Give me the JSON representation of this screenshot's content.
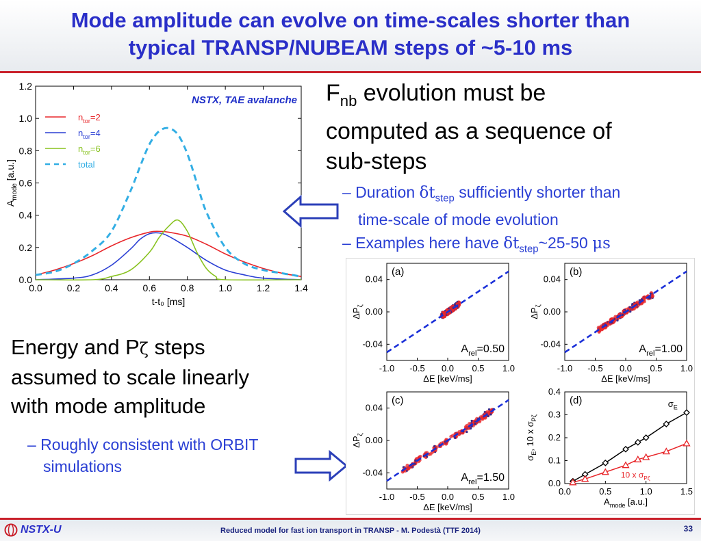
{
  "slide": {
    "title_line1": "Mode amplitude can evolve on time-scales shorter than",
    "title_line2": "typical TRANSP/NUBEAM steps of ~5-10 ms",
    "right": {
      "heading_pre": "F",
      "heading_sub": "nb",
      "heading_line1_rest": " evolution must be",
      "heading_line2": "computed as a sequence of",
      "heading_line3": "sub-steps",
      "bullet1_a": "– Duration ",
      "bullet1_sym": "δt",
      "bullet1_sub": "step",
      "bullet1_b": " sufficiently shorter than",
      "bullet1_c": "time-scale of mode evolution",
      "bullet2_a": "– Examples here have ",
      "bullet2_sym": "δt",
      "bullet2_sub": "step",
      "bullet2_b": "~25-50 ",
      "bullet2_unit": "μs"
    },
    "left": {
      "line1_pre": "Energy and P",
      "line1_sym": "ζ",
      "line1_post": " steps",
      "line2": "assumed to scale linearly",
      "line3": "with mode amplitude",
      "sub1": "– Roughly consistent with ORBIT",
      "sub2": "simulations"
    },
    "footer": {
      "logo": "NSTX-U",
      "text": "Reduced model for fast ion transport in TRANSP - M. Podestà (TTF 2014)",
      "page": "33"
    },
    "colors": {
      "title": "#2a2fc8",
      "accent_red": "#c9202a",
      "bullet_blue": "#2a3fd4",
      "arrow": "#2b3fb8"
    },
    "arrows": [
      "left-arrow-icon",
      "right-arrow-icon"
    ]
  },
  "chart_data": [
    {
      "type": "line",
      "annotation": "NSTX, TAE avalanche",
      "xlabel": "t-t₀  [ms]",
      "ylabel": "A_mode [a.u.]",
      "xlim": [
        0.0,
        1.4
      ],
      "ylim": [
        0.0,
        1.2
      ],
      "xticks": [
        "0.0",
        "0.2",
        "0.4",
        "0.6",
        "0.8",
        "1.0",
        "1.2",
        "1.4"
      ],
      "yticks": [
        "0.0",
        "0.2",
        "0.4",
        "0.6",
        "0.8",
        "1.0",
        "1.2"
      ],
      "legend_position": "top-left",
      "series": [
        {
          "name": "n_tor=2",
          "color": "#e8262a",
          "dash": false,
          "x": [
            0.0,
            0.1,
            0.2,
            0.3,
            0.4,
            0.5,
            0.6,
            0.65,
            0.7,
            0.8,
            0.9,
            1.0,
            1.1,
            1.2,
            1.3,
            1.4
          ],
          "y": [
            0.03,
            0.06,
            0.1,
            0.15,
            0.21,
            0.26,
            0.295,
            0.3,
            0.295,
            0.27,
            0.22,
            0.16,
            0.11,
            0.07,
            0.04,
            0.02
          ]
        },
        {
          "name": "n_tor=4",
          "color": "#2a3fd4",
          "dash": false,
          "x": [
            0.0,
            0.2,
            0.3,
            0.4,
            0.5,
            0.55,
            0.6,
            0.65,
            0.7,
            0.8,
            0.9,
            1.0,
            1.1,
            1.2,
            1.4
          ],
          "y": [
            0.0,
            0.01,
            0.03,
            0.09,
            0.19,
            0.25,
            0.285,
            0.29,
            0.27,
            0.2,
            0.12,
            0.06,
            0.03,
            0.01,
            0.0
          ]
        },
        {
          "name": "n_tor=6",
          "color": "#88c21f",
          "dash": false,
          "x": [
            0.0,
            0.3,
            0.4,
            0.5,
            0.6,
            0.65,
            0.7,
            0.75,
            0.8,
            0.85,
            0.9,
            0.95,
            1.0,
            1.4
          ],
          "y": [
            0.0,
            0.0,
            0.02,
            0.06,
            0.17,
            0.26,
            0.33,
            0.37,
            0.3,
            0.17,
            0.07,
            0.02,
            0.0,
            0.0
          ]
        },
        {
          "name": "total",
          "color": "#33aee4",
          "dash": true,
          "x": [
            0.0,
            0.1,
            0.2,
            0.3,
            0.4,
            0.5,
            0.55,
            0.6,
            0.65,
            0.7,
            0.75,
            0.8,
            0.85,
            0.9,
            1.0,
            1.1,
            1.2,
            1.3,
            1.4
          ],
          "y": [
            0.03,
            0.05,
            0.1,
            0.18,
            0.3,
            0.55,
            0.7,
            0.84,
            0.92,
            0.94,
            0.9,
            0.78,
            0.6,
            0.42,
            0.2,
            0.1,
            0.06,
            0.04,
            0.02
          ]
        }
      ]
    },
    {
      "type": "scatter",
      "panel": "(a)",
      "label": "A_rel=0.50",
      "xlabel": "ΔE [keV/ms]",
      "ylabel": "ΔP_ζ",
      "xlim": [
        -1.0,
        1.0
      ],
      "ylim": [
        -0.06,
        0.06
      ],
      "xticks": [
        "-1.0",
        "-0.5",
        "0.0",
        "0.5",
        "1.0"
      ],
      "yticks": [
        "0.04",
        "0.00",
        "-0.04"
      ],
      "cloud": {
        "center": [
          0.0,
          0.0
        ],
        "x_span": [
          -0.1,
          0.2
        ],
        "slope": 0.05
      },
      "reference_line_slope": 0.05
    },
    {
      "type": "scatter",
      "panel": "(b)",
      "label": "A_rel=1.00",
      "xlabel": "ΔE [keV/ms]",
      "ylabel": "ΔP_ζ",
      "xlim": [
        -1.0,
        1.0
      ],
      "ylim": [
        -0.06,
        0.06
      ],
      "xticks": [
        "-1.0",
        "-0.5",
        "0.0",
        "0.5",
        "1.0"
      ],
      "yticks": [
        "0.04",
        "0.00",
        "-0.04"
      ],
      "cloud": {
        "center": [
          0.0,
          0.0
        ],
        "x_span": [
          -0.45,
          0.45
        ],
        "slope": 0.05
      },
      "reference_line_slope": 0.05
    },
    {
      "type": "scatter",
      "panel": "(c)",
      "label": "A_rel=1.50",
      "xlabel": "ΔE [keV/ms]",
      "ylabel": "ΔP_ζ",
      "xlim": [
        -1.0,
        1.0
      ],
      "ylim": [
        -0.06,
        0.06
      ],
      "xticks": [
        "-1.0",
        "-0.5",
        "0.0",
        "0.5",
        "1.0"
      ],
      "yticks": [
        "0.04",
        "0.00",
        "-0.04"
      ],
      "cloud": {
        "center": [
          0.0,
          0.0
        ],
        "x_span": [
          -0.75,
          0.75
        ],
        "slope": 0.05
      },
      "reference_line_slope": 0.05
    },
    {
      "type": "line",
      "panel": "(d)",
      "xlabel": "A_mode [a.u.]",
      "ylabel": "σ_E, 10 x σ_Pζ",
      "xlim": [
        0.0,
        1.5
      ],
      "ylim": [
        0.0,
        0.4
      ],
      "xticks": [
        "0.0",
        "0.5",
        "1.0",
        "1.5"
      ],
      "yticks": [
        "0.0",
        "0.1",
        "0.2",
        "0.3",
        "0.4"
      ],
      "series": [
        {
          "name": "σ_E",
          "color": "#000000",
          "marker": "diamond",
          "x": [
            0.1,
            0.25,
            0.5,
            0.75,
            0.9,
            1.0,
            1.25,
            1.5
          ],
          "y": [
            0.01,
            0.04,
            0.09,
            0.15,
            0.18,
            0.2,
            0.26,
            0.31
          ]
        },
        {
          "name": "10 x σ_Pζ",
          "color": "#e8262a",
          "marker": "triangle",
          "x": [
            0.1,
            0.25,
            0.5,
            0.75,
            0.9,
            1.0,
            1.25,
            1.5
          ],
          "y": [
            0.005,
            0.02,
            0.05,
            0.08,
            0.105,
            0.115,
            0.14,
            0.175
          ]
        }
      ]
    }
  ]
}
